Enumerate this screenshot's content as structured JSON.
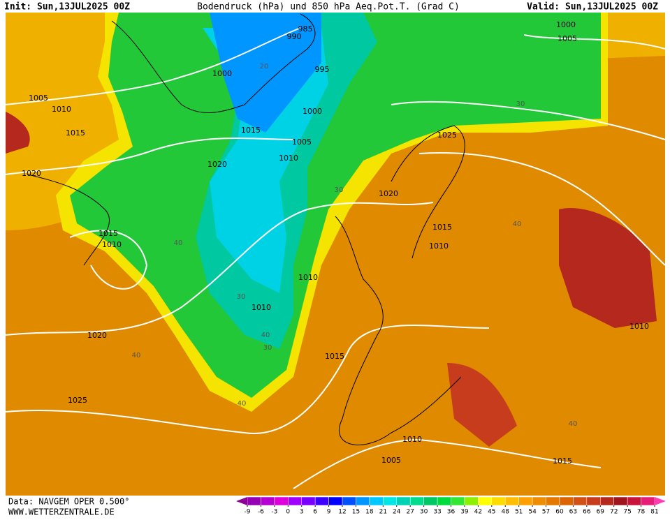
{
  "header": {
    "init": "Init: Sun,13JUL2025 00Z",
    "title": "Bodendruck (hPa) und 850 hPa Aeq.Pot.T. (Grad C)",
    "valid": "Valid: Sun,13JUL2025 00Z"
  },
  "footer": {
    "data_source": "Data: NAVGEM OPER 0.500°",
    "website": "WWW.WETTERZENTRALE.DE"
  },
  "isobar_labels": [
    "985",
    "990",
    "995",
    "1000",
    "1005",
    "1010",
    "1015",
    "1020",
    "1000",
    "1005",
    "1010",
    "1015",
    "1020",
    "1025",
    "1010",
    "1015",
    "1020",
    "1010",
    "1015",
    "1010",
    "1020",
    "1025",
    "1015",
    "1010",
    "1005",
    "1010",
    "1015",
    "1000",
    "1005",
    "1010"
  ],
  "temperature_labels": [
    "20",
    "30",
    "40",
    "30",
    "40",
    "30",
    "40",
    "40",
    "30",
    "40",
    "40"
  ],
  "colorbar": {
    "ticks": [
      -9,
      -6,
      -3,
      0,
      3,
      6,
      9,
      12,
      15,
      18,
      21,
      24,
      27,
      30,
      33,
      36,
      39,
      42,
      45,
      48,
      51,
      54,
      57,
      60,
      63,
      66,
      69,
      72,
      75,
      78,
      81
    ],
    "colors": [
      "#9600b4",
      "#b400d2",
      "#dc00dc",
      "#a000ff",
      "#7800ff",
      "#3c00ff",
      "#0000ff",
      "#0050ff",
      "#0096ff",
      "#00c8ff",
      "#00e6e6",
      "#00d2b4",
      "#00dc8c",
      "#00c864",
      "#00dc3c",
      "#32e632",
      "#8cf000",
      "#ffff00",
      "#ffdc00",
      "#ffbe00",
      "#ffa000",
      "#f08c00",
      "#e67800",
      "#dc6400",
      "#d25014",
      "#c83c1e",
      "#b4281e",
      "#a0141e",
      "#c8143c",
      "#e61e78"
    ],
    "low_color": "#8c0096",
    "high_color": "#ff3cb4"
  }
}
